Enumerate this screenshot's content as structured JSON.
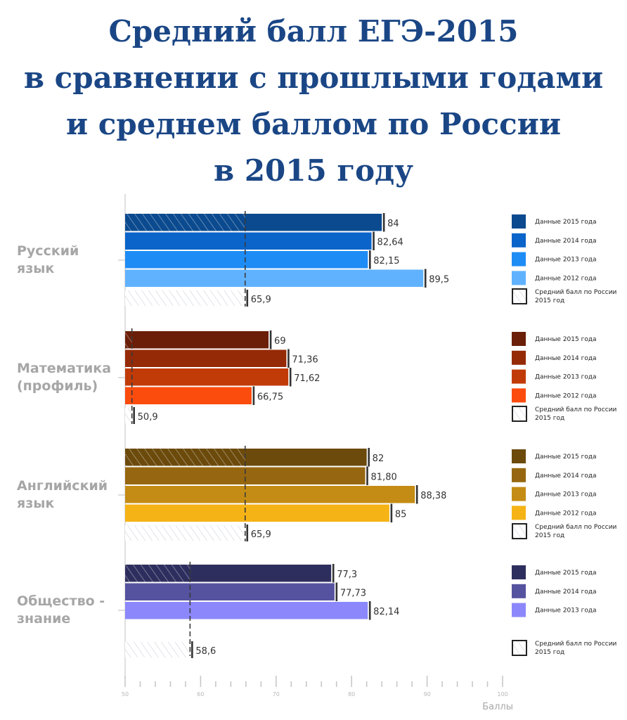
{
  "title_lines": [
    "Средний балл ЕГЭ-2015",
    "в сравнении с прошлыми годами",
    "и среднем баллом по России",
    "в 2015 году"
  ],
  "chart_data": {
    "type": "bar",
    "orientation": "horizontal",
    "xlabel": "Баллы",
    "xlim": [
      50,
      100
    ],
    "xticks": [
      50,
      60,
      70,
      80,
      90,
      100
    ],
    "minor_tick_step": 2,
    "groups": [
      {
        "category": "Русский язык",
        "bars": [
          {
            "name": "Данные 2015 года",
            "value": 84,
            "label": "84",
            "color": "#0b4a8f"
          },
          {
            "name": "Данные 2014 года",
            "value": 82.64,
            "label": "82,64",
            "color": "#0a64c9"
          },
          {
            "name": "Данные 2013 года",
            "value": 82.15,
            "label": "82,15",
            "color": "#1e8cf5"
          },
          {
            "name": "Данные 2012 года",
            "value": 89.5,
            "label": "89,5",
            "color": "#60b2ff"
          }
        ],
        "russia_avg": {
          "name": "Средний балл по России 2015 год",
          "value": 65.9,
          "label": "65,9"
        }
      },
      {
        "category": "Математика (профиль)",
        "bars": [
          {
            "name": "Данные 2015 года",
            "value": 69,
            "label": "69",
            "color": "#6b1f08"
          },
          {
            "name": "Данные 2014 года",
            "value": 71.36,
            "label": "71,36",
            "color": "#952a06"
          },
          {
            "name": "Данные 2013 года",
            "value": 71.62,
            "label": "71,62",
            "color": "#c13b08"
          },
          {
            "name": "Данные 2012 года",
            "value": 66.75,
            "label": "66,75",
            "color": "#fb4c0e"
          }
        ],
        "russia_avg": {
          "name": "Средний балл по России 2015 год",
          "value": 50.9,
          "label": "50,9"
        }
      },
      {
        "category": "Английский язык",
        "bars": [
          {
            "name": "Данные 2015 года",
            "value": 82,
            "label": "82",
            "color": "#6b4a0c"
          },
          {
            "name": "Данные 2014 года",
            "value": 81.8,
            "label": "81,80",
            "color": "#966710"
          },
          {
            "name": "Данные 2013 года",
            "value": 88.38,
            "label": "88,38",
            "color": "#c48c14"
          },
          {
            "name": "Данные 2012 года",
            "value": 85,
            "label": "85",
            "color": "#f5b316"
          }
        ],
        "russia_avg": {
          "name": "Средний балл по России 2015 год",
          "value": 65.9,
          "label": "65,9"
        }
      },
      {
        "category": "Общество - знание",
        "bars": [
          {
            "name": "Данные 2015 года",
            "value": 77.3,
            "label": "77,3",
            "color": "#2e2e5e"
          },
          {
            "name": "Данные 2014 года",
            "value": 77.73,
            "label": "77,73",
            "color": "#55529f"
          },
          {
            "name": "Данные 2013 года",
            "value": 82.14,
            "label": "82,14",
            "color": "#8c88fb"
          }
        ],
        "russia_avg": {
          "name": "Средний балл по России 2015 год",
          "value": 58.6,
          "label": "58,6"
        }
      }
    ]
  }
}
